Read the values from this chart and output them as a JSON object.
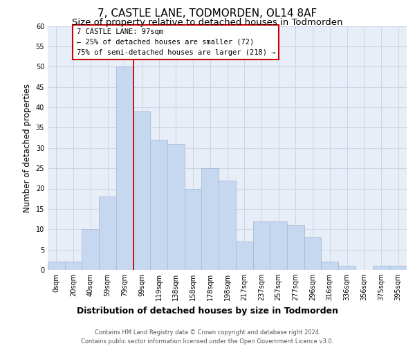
{
  "title": "7, CASTLE LANE, TODMORDEN, OL14 8AF",
  "subtitle": "Size of property relative to detached houses in Todmorden",
  "xlabel": "Distribution of detached houses by size in Todmorden",
  "ylabel": "Number of detached properties",
  "bar_labels": [
    "0sqm",
    "20sqm",
    "40sqm",
    "59sqm",
    "79sqm",
    "99sqm",
    "119sqm",
    "138sqm",
    "158sqm",
    "178sqm",
    "198sqm",
    "217sqm",
    "237sqm",
    "257sqm",
    "277sqm",
    "296sqm",
    "316sqm",
    "336sqm",
    "356sqm",
    "375sqm",
    "395sqm"
  ],
  "bar_values": [
    2,
    2,
    10,
    18,
    50,
    39,
    32,
    31,
    20,
    25,
    22,
    7,
    12,
    12,
    11,
    8,
    2,
    1,
    0,
    1,
    1
  ],
  "bar_color": "#c5d8f0",
  "bar_edge_color": "#a8bcd8",
  "vline_color": "#cc0000",
  "vline_x": 4.5,
  "ylim": [
    0,
    60
  ],
  "yticks": [
    0,
    5,
    10,
    15,
    20,
    25,
    30,
    35,
    40,
    45,
    50,
    55,
    60
  ],
  "annotation_title": "7 CASTLE LANE: 97sqm",
  "annotation_line1": "← 25% of detached houses are smaller (72)",
  "annotation_line2": "75% of semi-detached houses are larger (218) →",
  "annotation_box_color": "#ffffff",
  "annotation_box_edge": "#cc0000",
  "footer_line1": "Contains HM Land Registry data © Crown copyright and database right 2024.",
  "footer_line2": "Contains public sector information licensed under the Open Government Licence v3.0.",
  "background_color": "#ffffff",
  "plot_bg_color": "#e8eef8",
  "grid_color": "#c8d0e0",
  "title_fontsize": 11,
  "subtitle_fontsize": 9.5,
  "ylabel_fontsize": 8.5,
  "xlabel_fontsize": 9,
  "tick_fontsize": 7,
  "ann_fontsize": 7.5,
  "footer_fontsize": 6
}
